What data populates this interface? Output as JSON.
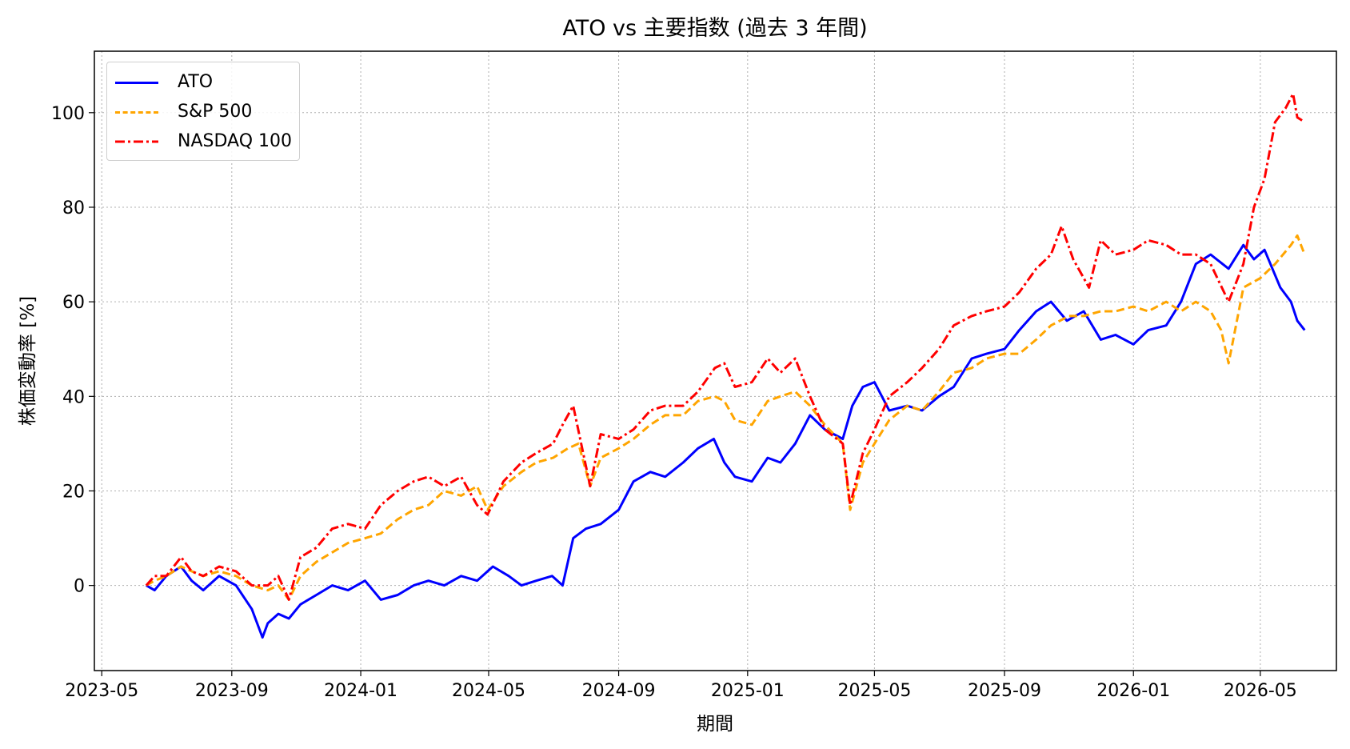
{
  "chart_data": {
    "type": "line",
    "title": "ATO vs 主要指数 (過去 3 年間)",
    "xlabel": "期間",
    "ylabel": "株価変動率 [%]",
    "xlim": [
      "2023-04-24",
      "2026-07-12"
    ],
    "ylim": [
      -18,
      113
    ],
    "x_ticks": [
      "2023-05",
      "2023-09",
      "2024-01",
      "2024-05",
      "2024-09",
      "2025-01",
      "2025-05",
      "2025-09",
      "2026-01",
      "2026-05"
    ],
    "y_ticks": [
      0,
      20,
      40,
      60,
      80,
      100
    ],
    "grid": true,
    "legend_position": "top-left",
    "series": [
      {
        "name": "ATO",
        "color": "#0000ff",
        "style": "solid",
        "x": [
          "2023-06-12",
          "2023-06-20",
          "2023-07-01",
          "2023-07-15",
          "2023-07-25",
          "2023-08-05",
          "2023-08-20",
          "2023-09-05",
          "2023-09-20",
          "2023-09-30",
          "2023-10-05",
          "2023-10-15",
          "2023-10-25",
          "2023-11-05",
          "2023-11-20",
          "2023-12-05",
          "2023-12-20",
          "2024-01-05",
          "2024-01-20",
          "2024-02-05",
          "2024-02-20",
          "2024-03-05",
          "2024-03-20",
          "2024-04-05",
          "2024-04-20",
          "2024-04-30",
          "2024-05-05",
          "2024-05-20",
          "2024-06-01",
          "2024-06-15",
          "2024-06-30",
          "2024-07-10",
          "2024-07-20",
          "2024-08-01",
          "2024-08-15",
          "2024-09-01",
          "2024-09-15",
          "2024-10-01",
          "2024-10-15",
          "2024-11-01",
          "2024-11-15",
          "2024-11-30",
          "2024-12-10",
          "2024-12-20",
          "2025-01-05",
          "2025-01-20",
          "2025-02-01",
          "2025-02-15",
          "2025-03-01",
          "2025-03-15",
          "2025-04-01",
          "2025-04-10",
          "2025-04-20",
          "2025-05-01",
          "2025-05-15",
          "2025-06-01",
          "2025-06-15",
          "2025-07-01",
          "2025-07-15",
          "2025-08-01",
          "2025-08-15",
          "2025-09-01",
          "2025-09-15",
          "2025-10-01",
          "2025-10-15",
          "2025-10-30",
          "2025-11-15",
          "2025-12-01",
          "2025-12-15",
          "2026-01-01",
          "2026-01-15",
          "2026-02-01",
          "2026-02-15",
          "2026-03-01",
          "2026-03-15",
          "2026-04-01",
          "2026-04-15",
          "2026-04-25",
          "2026-05-05",
          "2026-05-20",
          "2026-05-30",
          "2026-06-05",
          "2026-06-12"
        ],
        "y": [
          0,
          -1,
          2,
          4,
          1,
          -1,
          2,
          0,
          -5,
          -11,
          -8,
          -6,
          -7,
          -4,
          -2,
          0,
          -1,
          1,
          -3,
          -2,
          0,
          1,
          0,
          2,
          1,
          3,
          4,
          2,
          0,
          1,
          2,
          0,
          10,
          12,
          13,
          16,
          22,
          24,
          23,
          26,
          29,
          31,
          26,
          23,
          22,
          27,
          26,
          30,
          36,
          33,
          31,
          38,
          42,
          43,
          37,
          38,
          37,
          40,
          42,
          48,
          49,
          50,
          54,
          58,
          60,
          56,
          58,
          52,
          53,
          51,
          54,
          55,
          60,
          68,
          70,
          67,
          72,
          69,
          71,
          63,
          60,
          56,
          54
        ]
      },
      {
        "name": "S&P 500",
        "color": "#ffa500",
        "style": "dashed",
        "x": [
          "2023-06-12",
          "2023-06-20",
          "2023-07-01",
          "2023-07-15",
          "2023-07-25",
          "2023-08-05",
          "2023-08-20",
          "2023-09-05",
          "2023-09-20",
          "2023-10-05",
          "2023-10-15",
          "2023-10-25",
          "2023-11-05",
          "2023-11-20",
          "2023-12-05",
          "2023-12-20",
          "2024-01-05",
          "2024-01-20",
          "2024-02-05",
          "2024-02-20",
          "2024-03-05",
          "2024-03-20",
          "2024-04-05",
          "2024-04-20",
          "2024-04-30",
          "2024-05-15",
          "2024-06-01",
          "2024-06-15",
          "2024-07-01",
          "2024-07-15",
          "2024-07-25",
          "2024-08-05",
          "2024-08-15",
          "2024-09-01",
          "2024-09-15",
          "2024-10-01",
          "2024-10-15",
          "2024-11-01",
          "2024-11-15",
          "2024-12-01",
          "2024-12-10",
          "2024-12-20",
          "2025-01-05",
          "2025-01-20",
          "2025-02-01",
          "2025-02-15",
          "2025-03-01",
          "2025-03-15",
          "2025-04-01",
          "2025-04-08",
          "2025-04-20",
          "2025-05-01",
          "2025-05-15",
          "2025-06-01",
          "2025-06-15",
          "2025-07-01",
          "2025-07-15",
          "2025-08-01",
          "2025-08-15",
          "2025-09-01",
          "2025-09-15",
          "2025-10-01",
          "2025-10-15",
          "2025-11-01",
          "2025-11-15",
          "2025-12-01",
          "2025-12-15",
          "2026-01-01",
          "2026-01-15",
          "2026-02-01",
          "2026-02-15",
          "2026-03-01",
          "2026-03-15",
          "2026-03-25",
          "2026-04-01",
          "2026-04-15",
          "2026-05-01",
          "2026-05-15",
          "2026-05-30",
          "2026-06-05",
          "2026-06-12"
        ],
        "y": [
          0,
          1,
          2,
          4,
          3,
          2,
          3,
          2,
          0,
          -1,
          0,
          -3,
          2,
          5,
          7,
          9,
          10,
          11,
          14,
          16,
          17,
          20,
          19,
          21,
          16,
          21,
          24,
          26,
          27,
          29,
          30,
          21,
          27,
          29,
          31,
          34,
          36,
          36,
          39,
          40,
          39,
          35,
          34,
          39,
          40,
          41,
          38,
          34,
          30,
          16,
          26,
          30,
          35,
          38,
          37,
          41,
          45,
          46,
          48,
          49,
          49,
          52,
          55,
          57,
          57,
          58,
          58,
          59,
          58,
          60,
          58,
          60,
          58,
          54,
          47,
          63,
          65,
          68,
          72,
          74,
          70
        ]
      },
      {
        "name": "NASDAQ 100",
        "color": "#ff0000",
        "style": "dashdot",
        "x": [
          "2023-06-12",
          "2023-06-20",
          "2023-07-01",
          "2023-07-15",
          "2023-07-25",
          "2023-08-05",
          "2023-08-20",
          "2023-09-05",
          "2023-09-20",
          "2023-10-05",
          "2023-10-15",
          "2023-10-25",
          "2023-11-05",
          "2023-11-20",
          "2023-12-05",
          "2023-12-20",
          "2024-01-05",
          "2024-01-20",
          "2024-02-05",
          "2024-02-20",
          "2024-03-05",
          "2024-03-20",
          "2024-04-05",
          "2024-04-20",
          "2024-04-30",
          "2024-05-15",
          "2024-06-01",
          "2024-06-15",
          "2024-07-01",
          "2024-07-10",
          "2024-07-20",
          "2024-08-05",
          "2024-08-15",
          "2024-09-01",
          "2024-09-15",
          "2024-10-01",
          "2024-10-15",
          "2024-11-01",
          "2024-11-15",
          "2024-12-01",
          "2024-12-10",
          "2024-12-20",
          "2025-01-05",
          "2025-01-20",
          "2025-02-01",
          "2025-02-15",
          "2025-03-01",
          "2025-03-15",
          "2025-04-01",
          "2025-04-08",
          "2025-04-20",
          "2025-05-01",
          "2025-05-15",
          "2025-06-01",
          "2025-06-15",
          "2025-07-01",
          "2025-07-15",
          "2025-08-01",
          "2025-08-15",
          "2025-09-01",
          "2025-09-15",
          "2025-10-01",
          "2025-10-15",
          "2025-10-25",
          "2025-11-05",
          "2025-11-20",
          "2025-12-01",
          "2025-12-15",
          "2026-01-01",
          "2026-01-15",
          "2026-02-01",
          "2026-02-15",
          "2026-03-01",
          "2026-03-15",
          "2026-04-01",
          "2026-04-15",
          "2026-04-25",
          "2026-05-05",
          "2026-05-15",
          "2026-05-25",
          "2026-06-01",
          "2026-06-05",
          "2026-06-12"
        ],
        "y": [
          0,
          2,
          2,
          6,
          3,
          2,
          4,
          3,
          0,
          0,
          2,
          -3,
          6,
          8,
          12,
          13,
          12,
          17,
          20,
          22,
          23,
          21,
          23,
          17,
          15,
          22,
          26,
          28,
          30,
          34,
          38,
          21,
          32,
          31,
          33,
          37,
          38,
          38,
          41,
          46,
          47,
          42,
          43,
          48,
          45,
          48,
          40,
          33,
          30,
          17,
          28,
          33,
          40,
          43,
          46,
          50,
          55,
          57,
          58,
          59,
          62,
          67,
          70,
          76,
          69,
          63,
          73,
          70,
          71,
          73,
          72,
          70,
          70,
          68,
          60,
          68,
          80,
          86,
          98,
          101,
          104,
          99,
          98
        ]
      }
    ]
  }
}
